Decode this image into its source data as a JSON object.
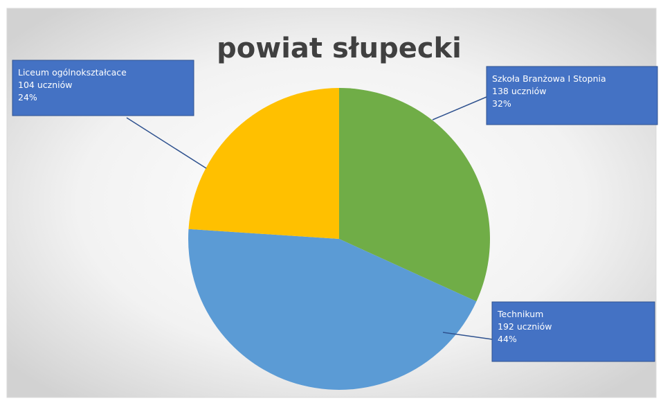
{
  "chart_data": {
    "type": "pie",
    "title": "powiat słupecki",
    "categories": [
      "Szkoła Branżowa I Stopnia",
      "Technikum",
      "Liceum ogólnokształcace"
    ],
    "values": [
      138,
      192,
      104
    ],
    "value_labels": [
      "138 uczniów",
      "192 uczniów",
      "104 uczniów"
    ],
    "percents": [
      32,
      44,
      24
    ],
    "percent_labels": [
      "32%",
      "44%",
      "24%"
    ],
    "colors": [
      "#70ad47",
      "#5b9bd5",
      "#ffc000"
    ]
  }
}
